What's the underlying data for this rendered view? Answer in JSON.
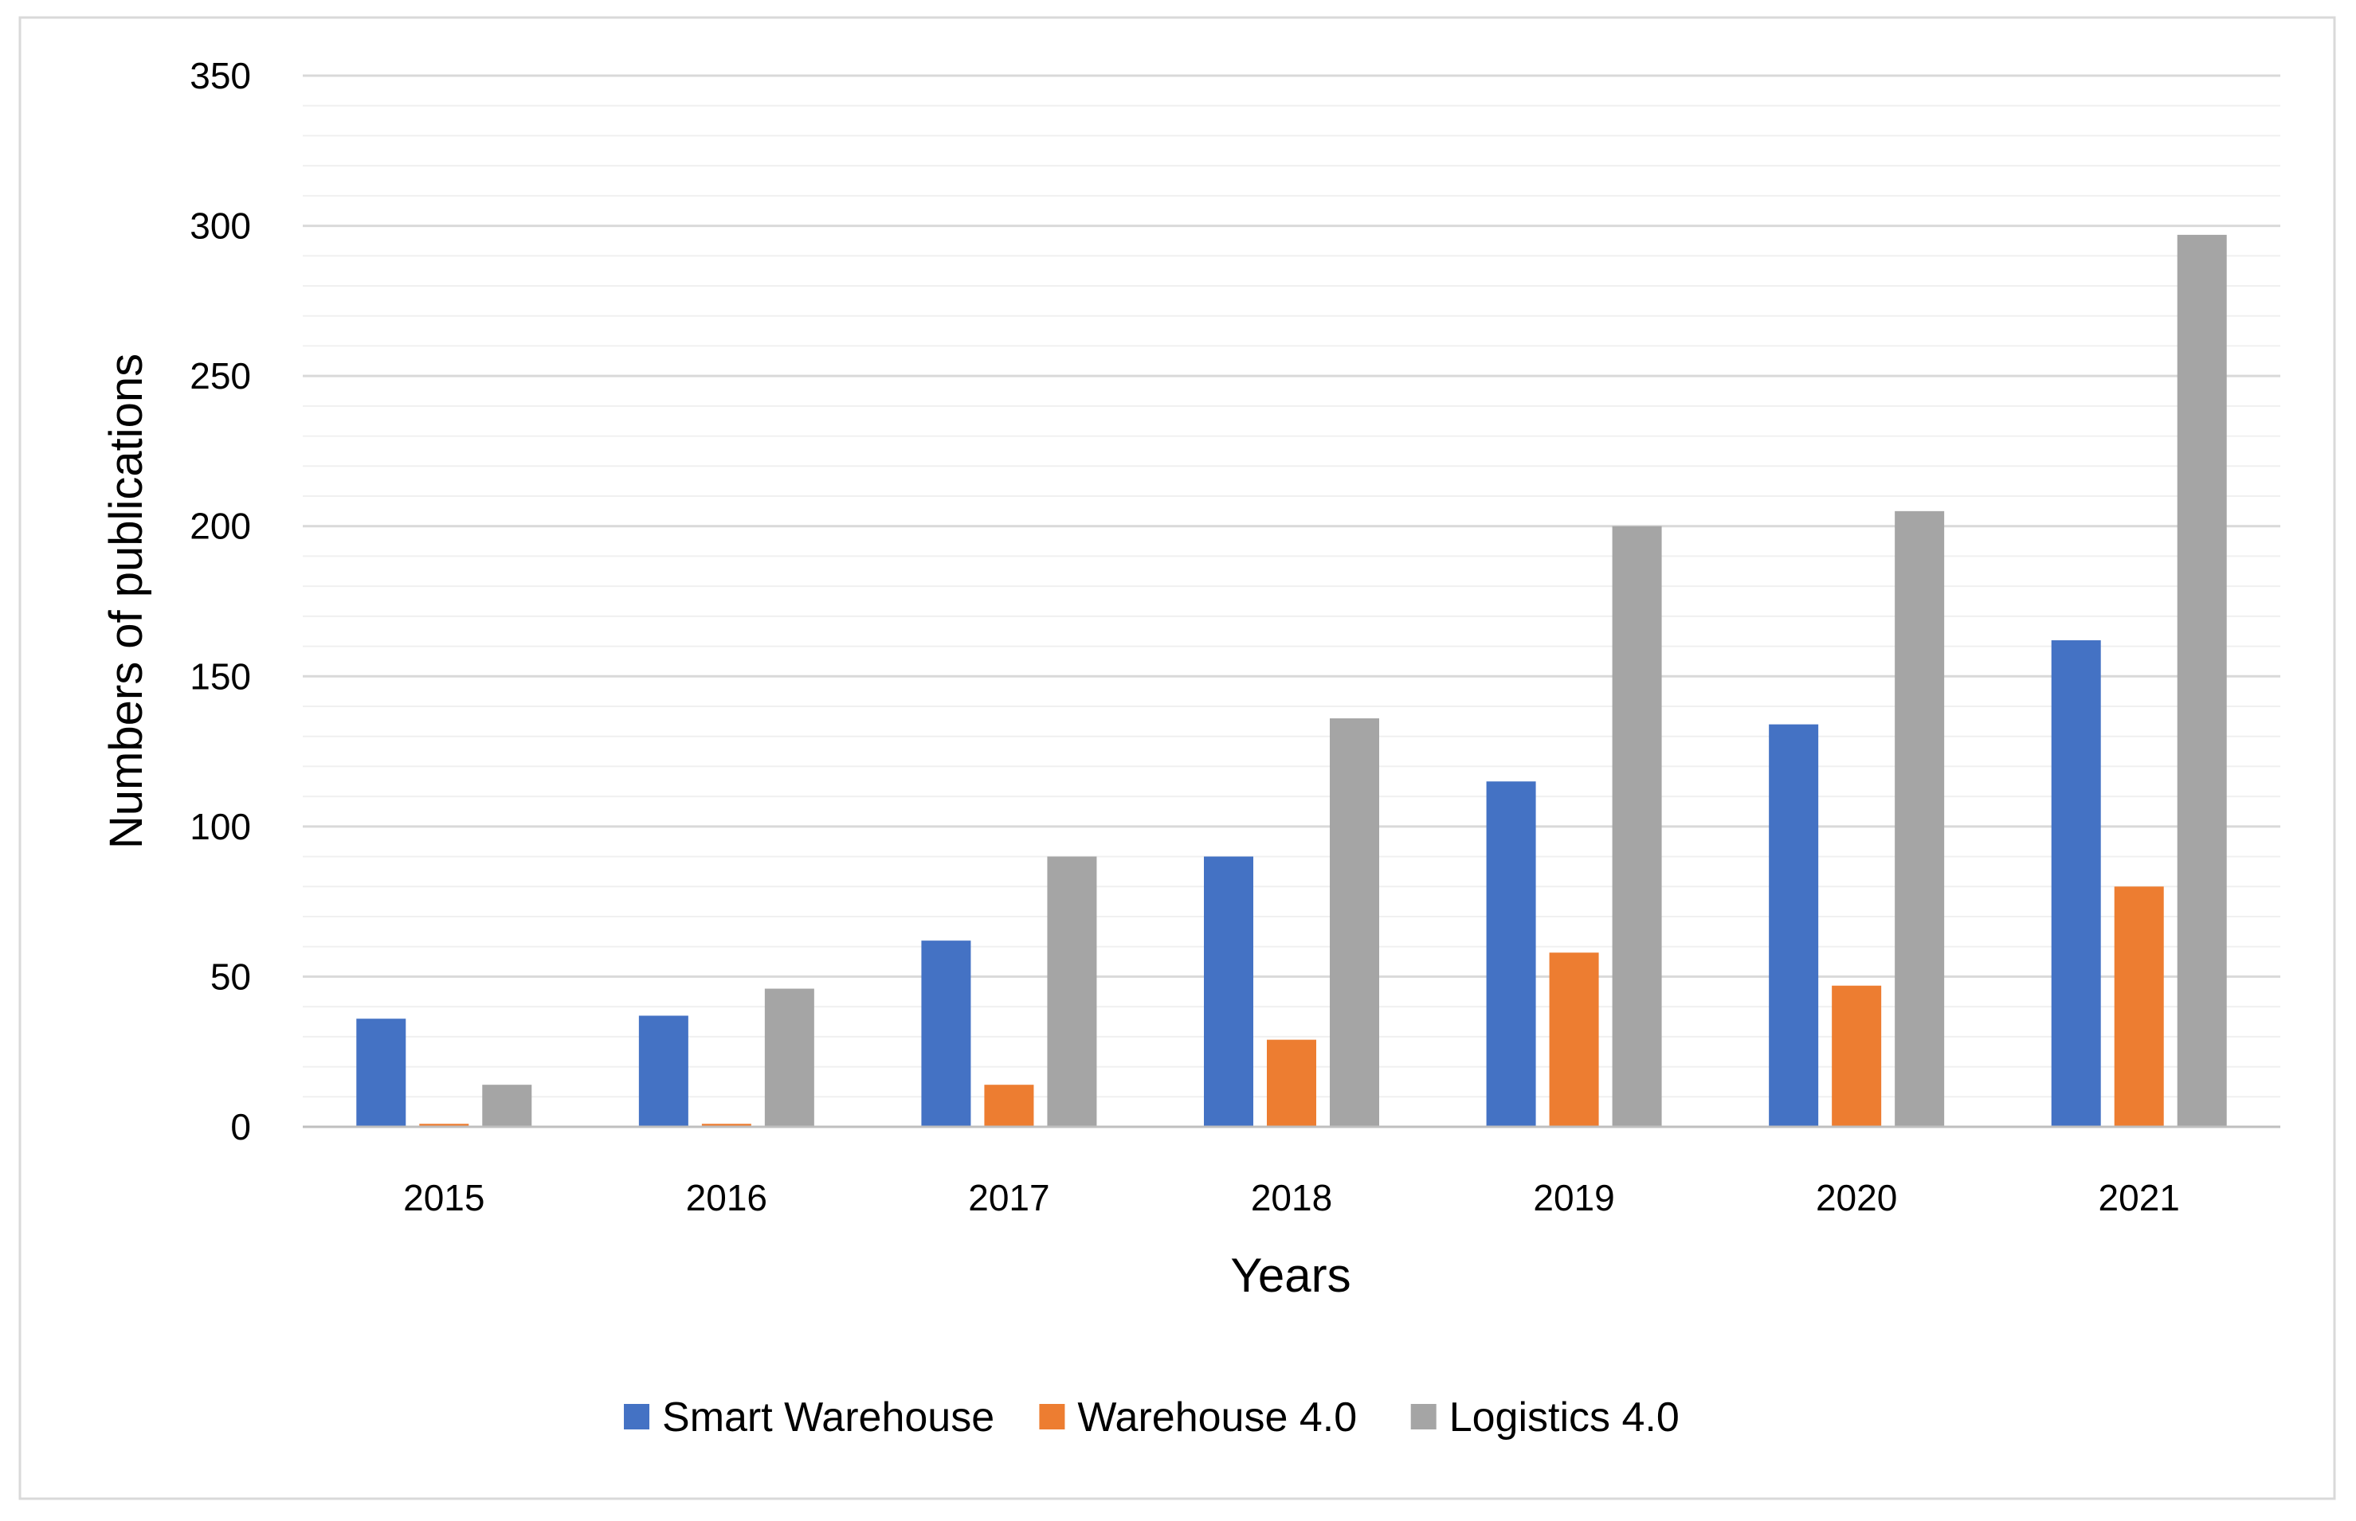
{
  "chart_data": {
    "type": "bar",
    "title": "",
    "xlabel": "Years",
    "ylabel": "Numbers of publications",
    "categories": [
      "2015",
      "2016",
      "2017",
      "2018",
      "2019",
      "2020",
      "2021"
    ],
    "series": [
      {
        "name": "Smart Warehouse",
        "color": "#4472C4",
        "values": [
          36,
          37,
          62,
          90,
          115,
          134,
          162
        ]
      },
      {
        "name": "Warehouse 4.0",
        "color": "#ED7D31",
        "values": [
          1,
          1,
          14,
          29,
          58,
          47,
          80
        ]
      },
      {
        "name": "Logistics 4.0",
        "color": "#A5A5A5",
        "values": [
          14,
          46,
          90,
          136,
          200,
          205,
          297
        ]
      }
    ],
    "ylim": [
      0,
      350
    ],
    "yticks": [
      "0",
      "50",
      "100",
      "150",
      "200",
      "250",
      "300",
      "350"
    ],
    "grid": true,
    "minor_grid": true,
    "legend_position": "bottom"
  }
}
